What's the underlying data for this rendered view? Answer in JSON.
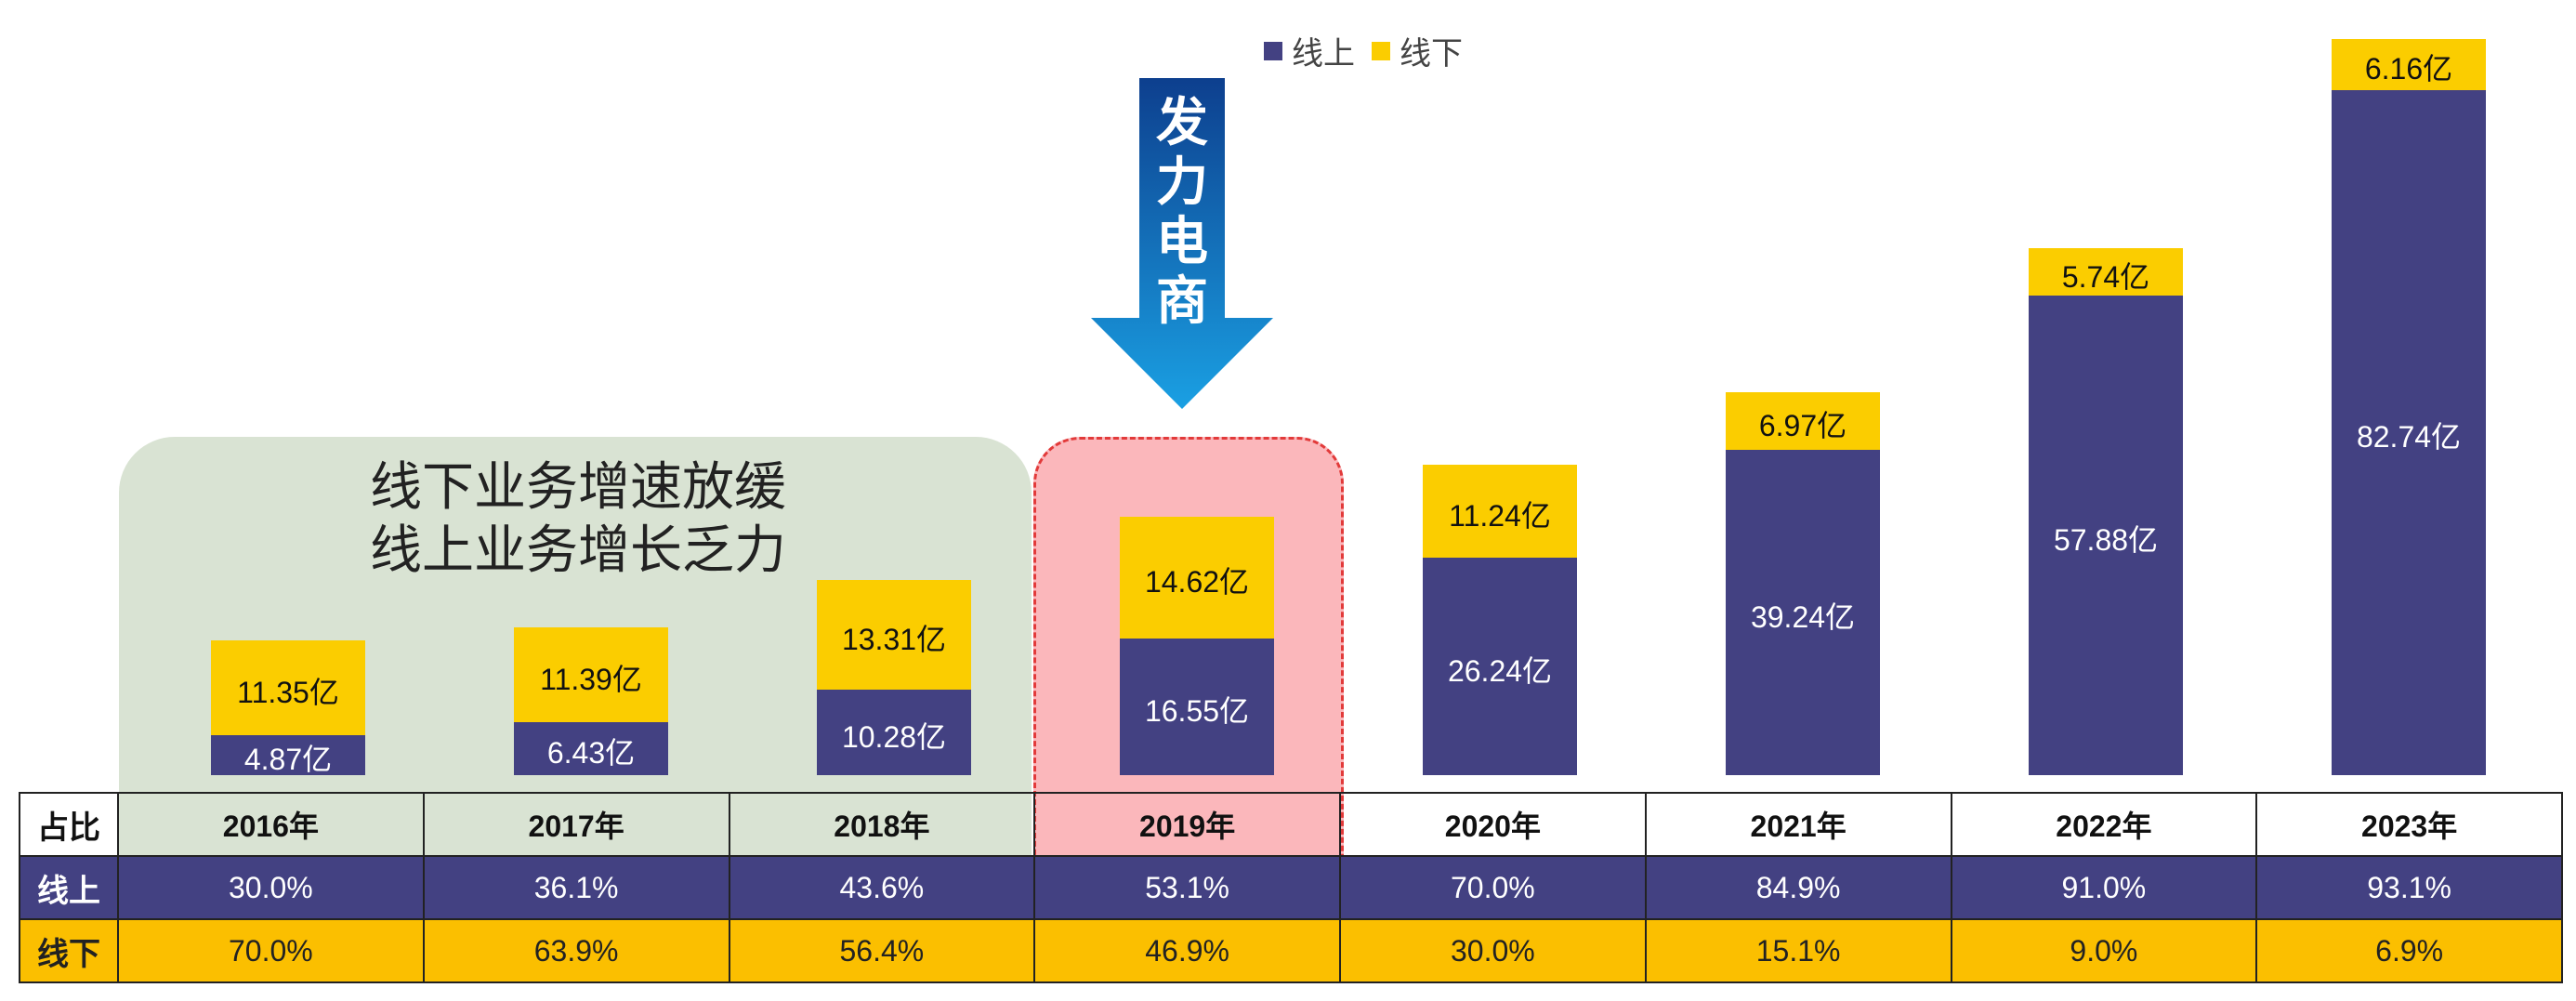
{
  "chart_data": {
    "type": "bar",
    "stacked": true,
    "title": "",
    "categories": [
      "2016年",
      "2017年",
      "2018年",
      "2019年",
      "2020年",
      "2021年",
      "2022年",
      "2023年"
    ],
    "series": [
      {
        "name": "线上",
        "color": "#434182",
        "values": [
          4.87,
          6.43,
          10.28,
          16.55,
          26.24,
          39.24,
          57.88,
          82.74
        ],
        "labels": [
          "4.87亿",
          "6.43亿",
          "10.28亿",
          "16.55亿",
          "26.24亿",
          "39.24亿",
          "57.88亿",
          "82.74亿"
        ]
      },
      {
        "name": "线下",
        "color": "#fbcd00",
        "values": [
          11.35,
          11.39,
          13.31,
          14.62,
          11.24,
          6.97,
          5.74,
          6.16
        ],
        "labels": [
          "11.35亿",
          "11.39亿",
          "13.31亿",
          "14.62亿",
          "11.24亿",
          "6.97亿",
          "5.74亿",
          "6.16亿"
        ]
      }
    ],
    "legend_position": "top",
    "grid": false
  },
  "legend": {
    "online": "线上",
    "offline": "线下"
  },
  "annotation": {
    "line1": "线下业务增速放缓",
    "line2": "线上业务增长乏力",
    "arrow_text": [
      "发",
      "力",
      "电",
      "商"
    ]
  },
  "table": {
    "header": "占比",
    "rows": [
      {
        "head": "线上",
        "cells": [
          "30.0%",
          "36.1%",
          "43.6%",
          "53.1%",
          "70.0%",
          "84.9%",
          "91.0%",
          "93.1%"
        ]
      },
      {
        "head": "线下",
        "cells": [
          "70.0%",
          "63.9%",
          "56.4%",
          "46.9%",
          "30.0%",
          "15.1%",
          "9.0%",
          "6.9%"
        ]
      }
    ]
  },
  "colors": {
    "online": "#434182",
    "offline": "#fbcd00",
    "table_offline": "#fbbf00",
    "green_panel": "#d9e3d3",
    "red_panel": "#fbb7bb"
  }
}
